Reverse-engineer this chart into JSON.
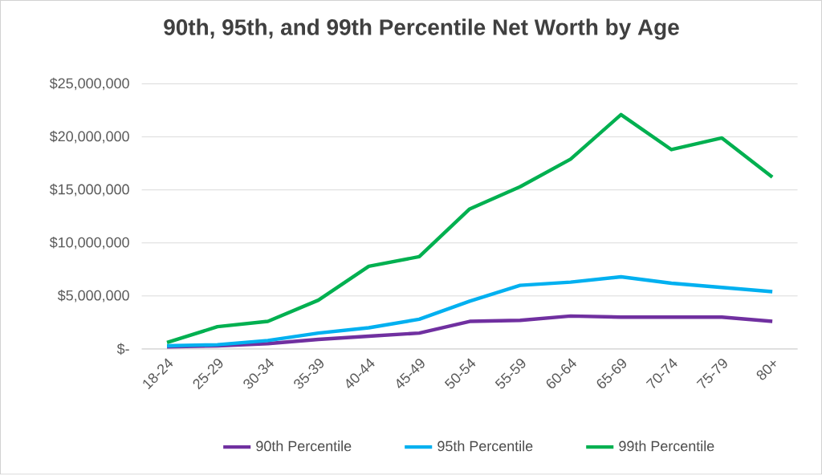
{
  "chart_data": {
    "type": "line",
    "title": "90th, 95th, and 99th Percentile Net Worth by Age",
    "categories": [
      "18-24",
      "25-29",
      "30-34",
      "35-39",
      "40-44",
      "45-49",
      "50-54",
      "55-59",
      "60-64",
      "65-69",
      "70-74",
      "75-79",
      "80+"
    ],
    "series": [
      {
        "name": "90th Percentile",
        "color": "#7030a0",
        "values": [
          200000,
          300000,
          500000,
          900000,
          1200000,
          1500000,
          2600000,
          2700000,
          3100000,
          3000000,
          3000000,
          3000000,
          2600000
        ]
      },
      {
        "name": "95th Percentile",
        "color": "#00b0f0",
        "values": [
          300000,
          400000,
          800000,
          1500000,
          2000000,
          2800000,
          4500000,
          6000000,
          6300000,
          6800000,
          6200000,
          5800000,
          5400000
        ]
      },
      {
        "name": "99th Percentile",
        "color": "#00b050",
        "values": [
          600000,
          2100000,
          2600000,
          4600000,
          7800000,
          8700000,
          13200000,
          15300000,
          17900000,
          22100000,
          18800000,
          19900000,
          16200000
        ]
      }
    ],
    "ylim": [
      0,
      25000000
    ],
    "yticks": [
      {
        "value": 0,
        "label": "$-"
      },
      {
        "value": 5000000,
        "label": "$5,000,000"
      },
      {
        "value": 10000000,
        "label": "$10,000,000"
      },
      {
        "value": 15000000,
        "label": "$15,000,000"
      },
      {
        "value": 20000000,
        "label": "$20,000,000"
      },
      {
        "value": 25000000,
        "label": "$25,000,000"
      }
    ],
    "grid": "y",
    "legend": "bottom",
    "marker": "none",
    "line_style": "solid"
  }
}
